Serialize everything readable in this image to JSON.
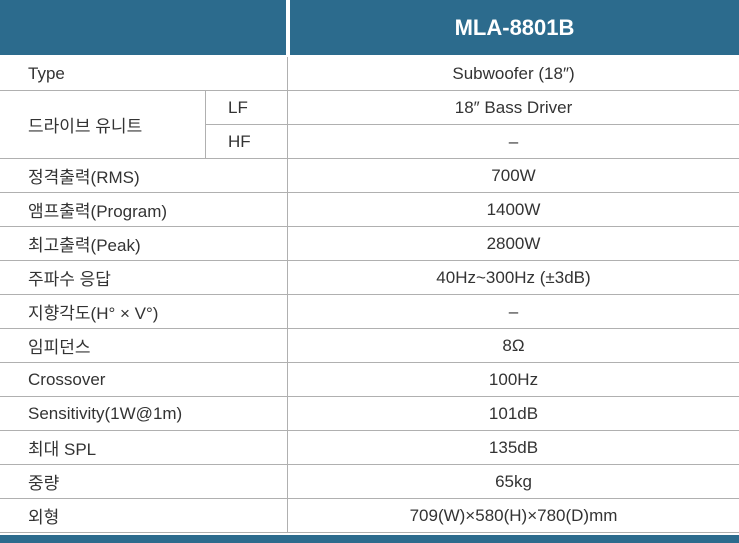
{
  "header": {
    "model": "MLA-8801B"
  },
  "rows": [
    {
      "label": "Type",
      "value": "Subwoofer (18″)"
    },
    {
      "label": "드라이브 유니트",
      "units": [
        {
          "band": "LF",
          "value": "18″ Bass Driver"
        },
        {
          "band": "HF",
          "value": "–"
        }
      ]
    },
    {
      "label": "정격출력(RMS)",
      "value": "700W"
    },
    {
      "label": "앰프출력(Program)",
      "value": "1400W"
    },
    {
      "label": "최고출력(Peak)",
      "value": "2800W"
    },
    {
      "label": "주파수 응답",
      "value": "40Hz~300Hz (±3dB)"
    },
    {
      "label": "지향각도(H° × V°)",
      "value": "–"
    },
    {
      "label": "임피던스",
      "value": "8Ω"
    },
    {
      "label": "Crossover",
      "value": "100Hz"
    },
    {
      "label": "Sensitivity(1W@1m)",
      "value": "101dB"
    },
    {
      "label": "최대 SPL",
      "value": "135dB"
    },
    {
      "label": "중량",
      "value": "65kg"
    },
    {
      "label": "외형",
      "value": "709(W)×580(H)×780(D)mm"
    }
  ]
}
